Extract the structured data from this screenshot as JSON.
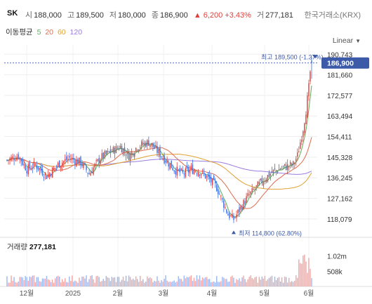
{
  "header": {
    "ticker": "SK",
    "open_label": "시",
    "open": "188,000",
    "high_label": "고",
    "high": "189,500",
    "low_label": "저",
    "low": "180,000",
    "close_label": "종",
    "close": "186,900",
    "change": "▲ 6,200 +3.43%",
    "volume_label": "거",
    "volume": "277,181",
    "exchange": "한국거래소(KRX)"
  },
  "ma_legend": {
    "title": "이동평균",
    "items": [
      {
        "label": "5",
        "color": "#5ab05a"
      },
      {
        "label": "20",
        "color": "#e06b50"
      },
      {
        "label": "60",
        "color": "#e0a030"
      },
      {
        "label": "120",
        "color": "#9a7be0"
      }
    ]
  },
  "scale_mode": "Linear",
  "volume_panel": {
    "title": "거래량",
    "value": "277,181"
  },
  "chart_data": {
    "type": "candlestick",
    "ylim": [
      114000,
      193000
    ],
    "y_ticks": [
      190743,
      181660,
      172577,
      163494,
      154411,
      145328,
      136245,
      127162,
      118079
    ],
    "y_tick_labels": [
      "190,743",
      "181,660",
      "172,577",
      "163,494",
      "154,411",
      "145,328",
      "136,245",
      "127,162",
      "118,079"
    ],
    "x_tick_labels": [
      "12월",
      "2025",
      "2월",
      "3월",
      "4월",
      "5월",
      "6월"
    ],
    "current_price": 186900,
    "current_price_label": "186,900",
    "max_annotation": {
      "label": "최고 189,500 (-1.37%)",
      "value": 189500
    },
    "min_annotation": {
      "label": "최저 114,800 (62.80%)",
      "value": 114800
    },
    "volume_ticks": [
      "1.02m",
      "508k"
    ],
    "volume_tick_values": [
      1020000,
      508000
    ],
    "up_color": "#e0403a",
    "down_color": "#3a6fe0",
    "ma_colors": {
      "ma5": "#5ab05a",
      "ma20": "#e06b50",
      "ma60": "#e0a030",
      "ma120": "#9a7be0"
    }
  }
}
